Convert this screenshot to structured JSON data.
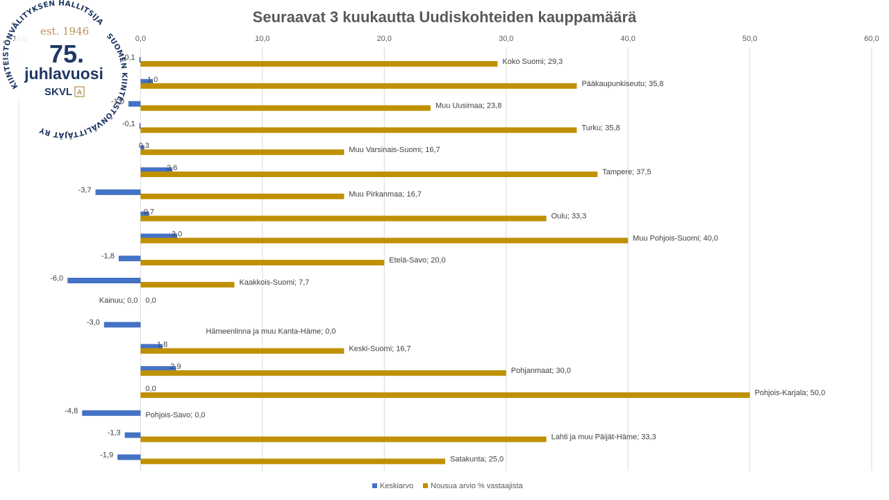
{
  "chart_data": {
    "type": "bar",
    "orientation": "horizontal",
    "title": "Seuraavat 3 kuukautta Uudiskohteiden kauppamäärä",
    "xlim": [
      -10,
      60
    ],
    "xticks": [
      "-10,0",
      "0,0",
      "10,0",
      "20,0",
      "30,0",
      "40,0",
      "50,0",
      "60,0"
    ],
    "grid": true,
    "legend_position": "bottom",
    "categories": [
      "Koko Suomi",
      "Pääkaupunkiseutu",
      "Muu Uusimaa",
      "Turku",
      "Muu Varsinais-Suomi",
      "Tampere",
      "Muu Pirkanmaa",
      "Oulu",
      "Muu Pohjois-Suomi",
      "Etelä-Savo",
      "Kaakkois-Suomi",
      "Kainuu",
      "Hämeenlinna ja muu Kanta-Häme",
      "Keski-Suomi",
      "Pohjanmaat",
      "Pohjois-Karjala",
      "Pohjois-Savo",
      "Lahti ja muu Päijät-Häme",
      "Satakunta"
    ],
    "series": [
      {
        "name": "Keskiarvo",
        "color": "#4472c4",
        "values": [
          -0.1,
          1.0,
          -1.0,
          -0.1,
          0.3,
          2.6,
          -3.7,
          0.7,
          3.0,
          -1.8,
          -6.0,
          0.0,
          -3.0,
          1.8,
          2.9,
          0.0,
          -4.8,
          -1.3,
          -1.9
        ],
        "labels": [
          "-0,1",
          "1,0",
          "-1,0",
          "-0,1",
          "0,3",
          "2,6",
          "-3,7",
          "0,7",
          "3,0",
          "-1,8",
          "-6,0",
          "Kainuu; 0,0",
          "-3,0",
          "1,8",
          "2,9",
          "0,0",
          "-4,8",
          "-1,3",
          "-1,9"
        ]
      },
      {
        "name": "Nousua arvio % vastaajista",
        "color": "#bf9000",
        "values": [
          29.3,
          35.8,
          23.8,
          35.8,
          16.7,
          37.5,
          16.7,
          33.3,
          40.0,
          20.0,
          7.7,
          0.0,
          0.0,
          16.7,
          30.0,
          50.0,
          0.0,
          33.3,
          25.0
        ],
        "labels": [
          "Koko Suomi; 29,3",
          "Pääkaupunkiseutu; 35,8",
          "Muu Uusimaa; 23,8",
          "Turku; 35,8",
          "Muu Varsinais-Suomi; 16,7",
          "Tampere; 37,5",
          "Muu Pirkanmaa; 16,7",
          "Oulu; 33,3",
          "Muu Pohjois-Suomi; 40,0",
          "Etelä-Savo; 20,0",
          "Kaakkois-Suomi; 7,7",
          "0,0",
          "Hämeenlinna ja muu Kanta-Häme; 0,0",
          "Keski-Suomi; 16,7",
          "Pohjanmaat; 30,0",
          "Pohjois-Karjala; 50,0",
          "Pohjois-Savo; 0,0",
          "Lahti ja muu Päijät-Häme; 33,3",
          "Satakunta; 25,0"
        ]
      }
    ]
  },
  "logo": {
    "arc_top": "KIINTEISTÖNVÄLITYKSEN HALLITSIJA",
    "arc_right": "SUOMEN KIINTEISTÖNVÄLITTÄJÄT RY",
    "est": "est. 1946",
    "number": "75.",
    "word": "juhlavuosi",
    "brand": "SKVL",
    "brand_mark": "A"
  }
}
